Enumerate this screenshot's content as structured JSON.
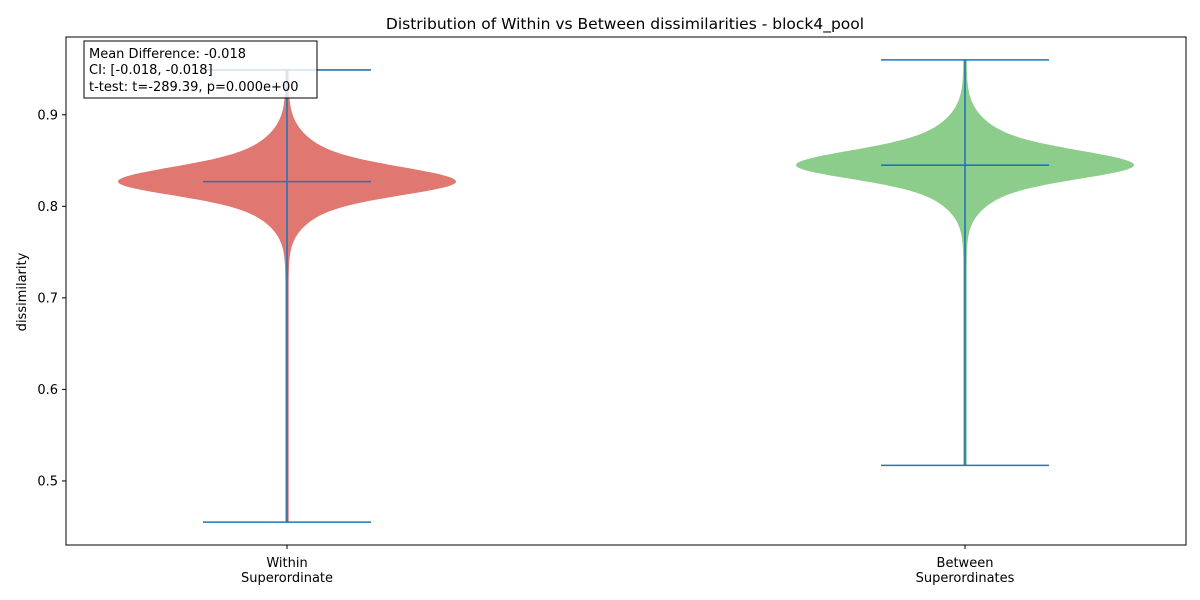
{
  "chart_data": {
    "type": "violin",
    "title": "Distribution of Within vs Between dissimilarities - block4_pool",
    "xlabel": "",
    "ylabel": "dissimilarity",
    "ylim": [
      0.43,
      0.985
    ],
    "yticks": [
      "0.5",
      "0.6",
      "0.7",
      "0.8",
      "0.9"
    ],
    "grid": false,
    "categories": [
      {
        "label_line1": "Within",
        "label_line2": "Superordinate",
        "min": 0.455,
        "max": 0.949,
        "mean": 0.827,
        "color": "#e07771"
      },
      {
        "label_line1": "Between",
        "label_line2": "Superordinates",
        "min": 0.517,
        "max": 0.96,
        "mean": 0.845,
        "color": "#8ccd8c"
      }
    ],
    "line_color": "#1f77b4",
    "annotation": {
      "line1": "Mean Difference: -0.018",
      "line2": "CI: [-0.018, -0.018]",
      "line3": "t-test: t=-289.39, p=0.000e+00"
    }
  }
}
